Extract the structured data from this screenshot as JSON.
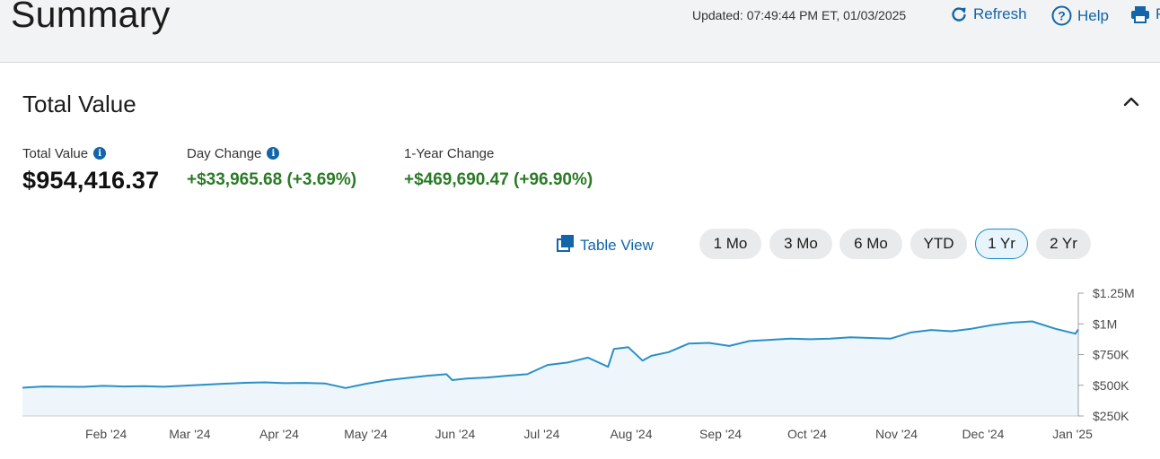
{
  "header": {
    "title": "Summary",
    "updated": "Updated: 07:49:44 PM ET, 01/03/2025",
    "refresh_label": "Refresh",
    "help_label": "Help",
    "print_label": "P",
    "icons": {
      "refresh": "refresh-icon",
      "help": "help-circle-icon",
      "print": "printer-icon"
    }
  },
  "section": {
    "title": "Total Value",
    "collapse_icon": "chevron-up-icon"
  },
  "stats": {
    "total_value_label": "Total Value",
    "total_value": "$954,416.37",
    "day_change_label": "Day Change",
    "day_change": "+$33,965.68 (+3.69%)",
    "year_change_label": "1-Year Change",
    "year_change": "+$469,690.47 (+96.90%)"
  },
  "controls": {
    "table_view_label": "Table View",
    "ranges": [
      "1 Mo",
      "3 Mo",
      "6 Mo",
      "YTD",
      "1 Yr",
      "2 Yr"
    ],
    "selected_range": "1 Yr"
  },
  "colors": {
    "accent": "#1265a8",
    "positive": "#2a7a26",
    "line": "#2b8fc7",
    "area_fill": "#eef6fc"
  },
  "chart_data": {
    "type": "area",
    "x_ticks": [
      "Feb '24",
      "Mar '24",
      "Apr '24",
      "May '24",
      "Jun '24",
      "Jul '24",
      "Aug '24",
      "Sep '24",
      "Oct '24",
      "Nov '24",
      "Dec '24",
      "Jan '25"
    ],
    "y_ticks": [
      "$250K",
      "$500K",
      "$750K",
      "$1M",
      "$1.25M"
    ],
    "y_tick_values": [
      250000,
      500000,
      750000,
      1000000,
      1250000
    ],
    "ylim": [
      250000,
      1250000
    ],
    "grid": false,
    "y_axis_side": "right",
    "series": [
      {
        "x": [
          "2024-01-03",
          "2024-01-10",
          "2024-01-17",
          "2024-01-24",
          "2024-01-31",
          "2024-02-07",
          "2024-02-14",
          "2024-02-21",
          "2024-02-28",
          "2024-03-06",
          "2024-03-13",
          "2024-03-20",
          "2024-03-27",
          "2024-04-03",
          "2024-04-10",
          "2024-04-17",
          "2024-04-24",
          "2024-05-01",
          "2024-05-08",
          "2024-05-15",
          "2024-05-22",
          "2024-05-29",
          "2024-05-31",
          "2024-06-05",
          "2024-06-12",
          "2024-06-19",
          "2024-06-26",
          "2024-07-03",
          "2024-07-10",
          "2024-07-17",
          "2024-07-24",
          "2024-07-26",
          "2024-07-31",
          "2024-08-05",
          "2024-08-08",
          "2024-08-14",
          "2024-08-21",
          "2024-08-28",
          "2024-09-04",
          "2024-09-11",
          "2024-09-18",
          "2024-09-25",
          "2024-10-02",
          "2024-10-09",
          "2024-10-16",
          "2024-10-23",
          "2024-10-30",
          "2024-11-06",
          "2024-11-13",
          "2024-11-20",
          "2024-11-27",
          "2024-12-04",
          "2024-12-11",
          "2024-12-18",
          "2024-12-26",
          "2025-01-02",
          "2025-01-03"
        ],
        "values": [
          480000,
          490000,
          488000,
          487000,
          495000,
          490000,
          493000,
          488000,
          497000,
          505000,
          513000,
          520000,
          524000,
          517000,
          519000,
          514000,
          478000,
          512000,
          540000,
          558000,
          577000,
          590000,
          542000,
          555000,
          563000,
          578000,
          590000,
          665000,
          685000,
          725000,
          650000,
          795000,
          810000,
          700000,
          740000,
          770000,
          840000,
          845000,
          820000,
          860000,
          870000,
          880000,
          875000,
          880000,
          890000,
          885000,
          880000,
          930000,
          950000,
          940000,
          960000,
          990000,
          1010000,
          1020000,
          960000,
          920000,
          954416
        ]
      }
    ]
  }
}
